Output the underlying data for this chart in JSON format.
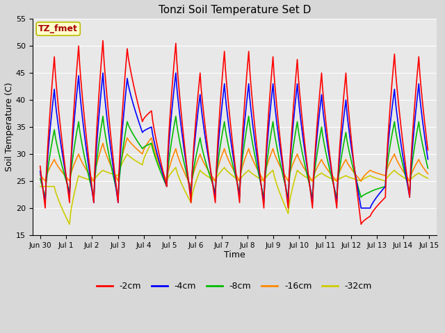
{
  "title": "Tonzi Soil Temperature Set D",
  "xlabel": "Time",
  "ylabel": "Soil Temperature (C)",
  "ylim": [
    15,
    55
  ],
  "annotation": "TZ_fmet",
  "legend_labels": [
    "-2cm",
    "-4cm",
    "-8cm",
    "-16cm",
    "-32cm"
  ],
  "legend_colors": [
    "#ff0000",
    "#0000ff",
    "#00bb00",
    "#ff8800",
    "#cccc00"
  ],
  "bg_color": "#e8e8e8",
  "line_width": 1.2,
  "xtick_labels": [
    "Jun 30",
    "Jul 1",
    "Jul 2",
    "Jul 3",
    "Jul 4",
    "Jul 5",
    "Jul 6",
    "Jul 7",
    "Jul 8",
    "Jul 9",
    "Jul 10",
    "Jul 11",
    "Jul 12",
    "Jul 13",
    "Jul 14",
    "Jul 15"
  ],
  "n_per_day": 24,
  "days": 16
}
